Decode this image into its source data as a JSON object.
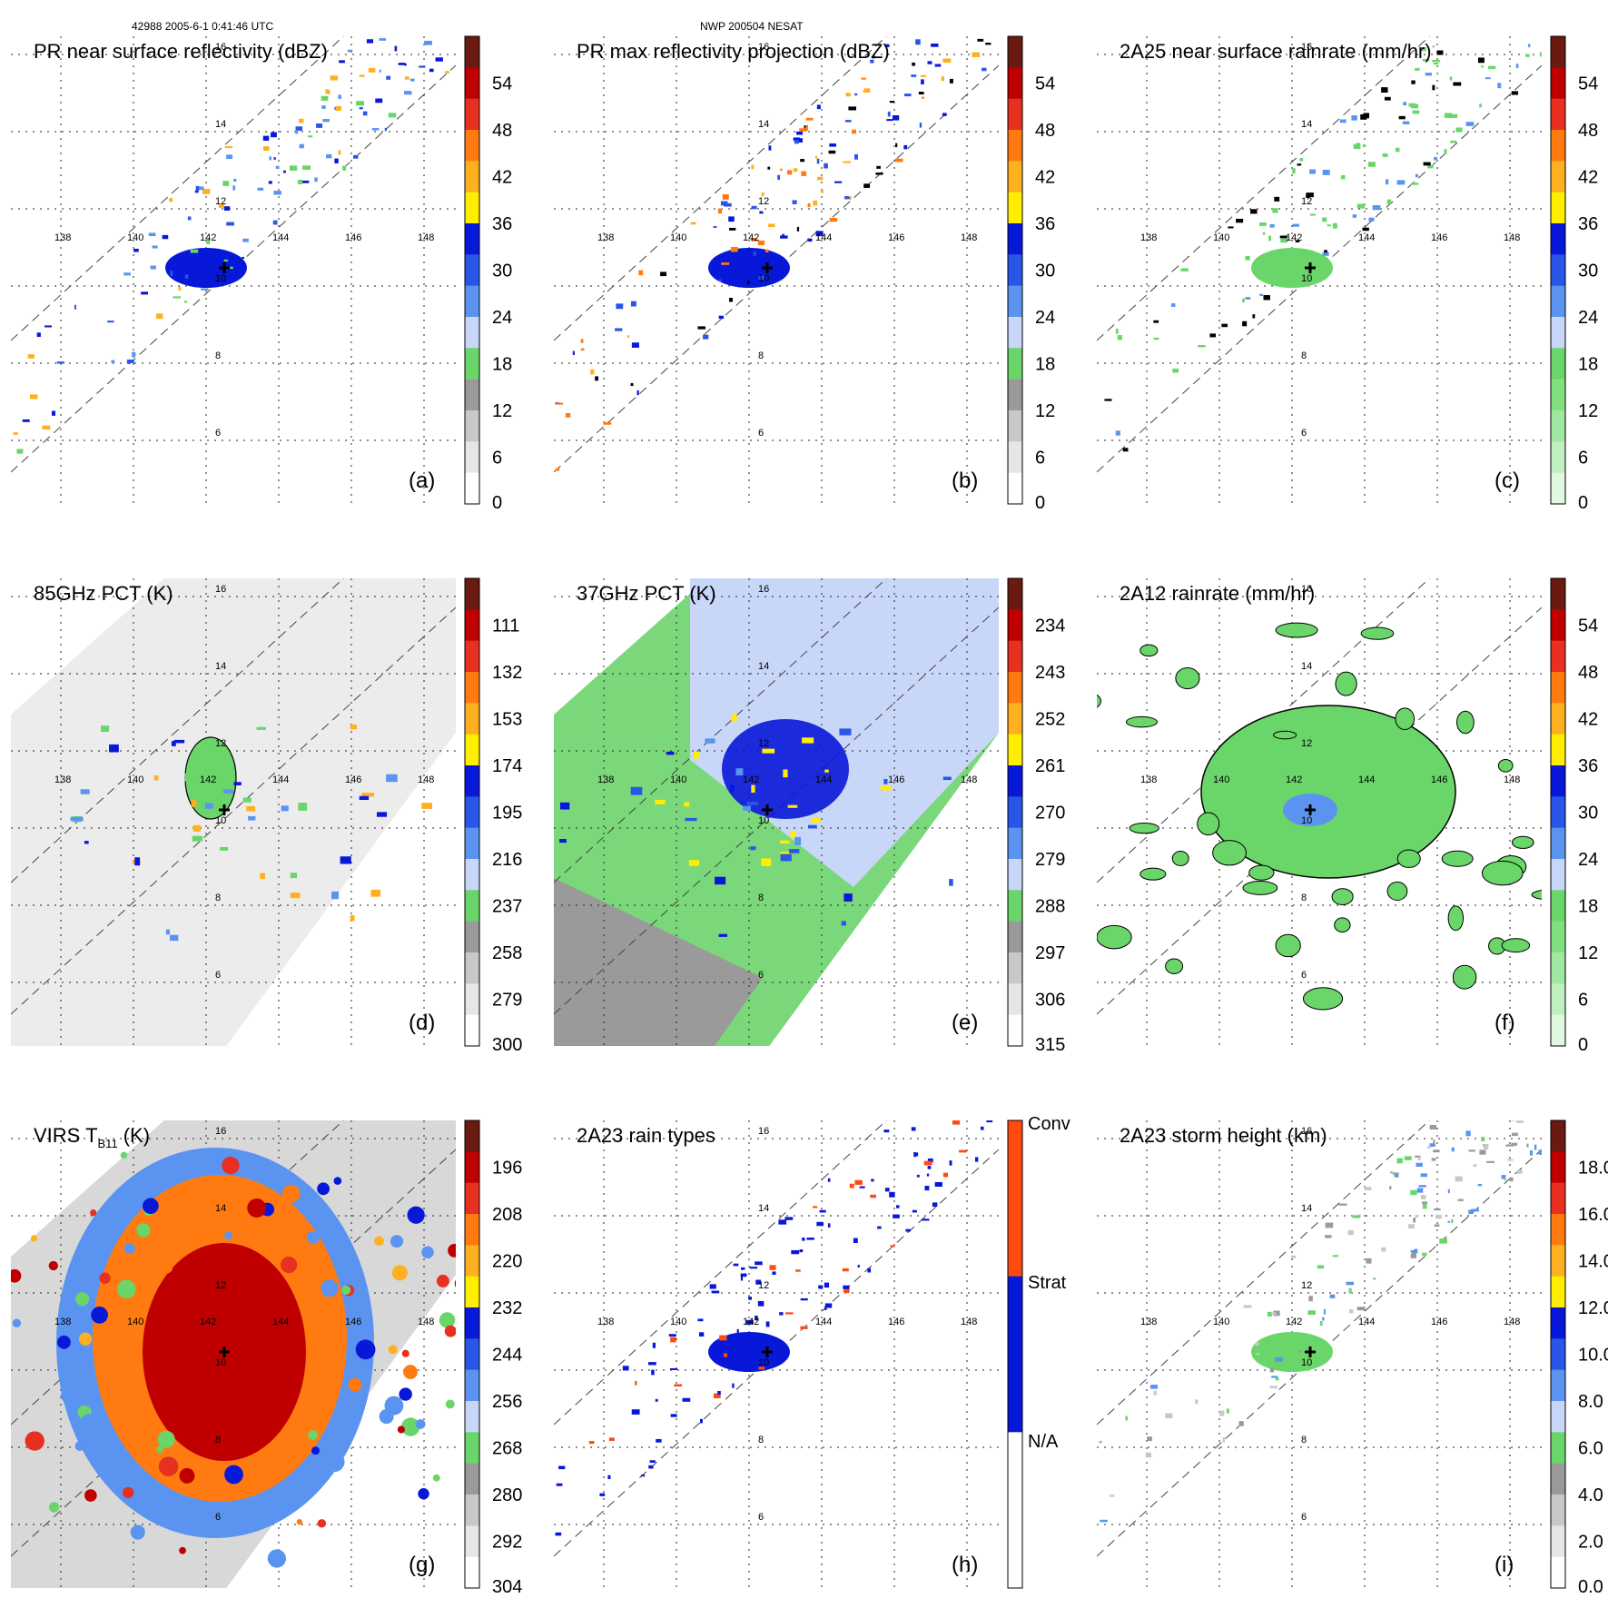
{
  "header": {
    "left": "42988 2005-6-1 0:41:46 UTC",
    "center": "NWP 200504 NESAT"
  },
  "colors": {
    "grid": "#222222",
    "swath_line": "#444444",
    "contour": "#000000"
  },
  "chart_data": [
    {
      "type": "heatmap",
      "id": "a",
      "title": "PR near surface reflectivity (dBZ)",
      "panel_label": "(a)",
      "plot": "pr_swath",
      "colorbar": {
        "ticks": [
          "54",
          "48",
          "42",
          "36",
          "30",
          "24",
          "18",
          "12",
          "6",
          "0"
        ],
        "colors": [
          "#6a1a10",
          "#c00000",
          "#e83020",
          "#ff7a10",
          "#ffb020",
          "#ffee00",
          "#0818d8",
          "#2a56e8",
          "#5a94f0",
          "#c8d6f8",
          "#6ad66a",
          "#9a9a9a",
          "#c8c8c8",
          "#e6e6e6",
          "#ffffff"
        ]
      },
      "palette": [
        "#0818d8",
        "#2a56e8",
        "#5a94f0",
        "#6ad66a",
        "#ffb020"
      ],
      "lon_ticks": [
        "138",
        "140",
        "142",
        "144",
        "146",
        "148"
      ],
      "lat_ticks": [
        "16",
        "14",
        "12",
        "10",
        "8",
        "6"
      ]
    },
    {
      "type": "heatmap",
      "id": "b",
      "title": "PR max reflectivity projection (dBZ)",
      "panel_label": "(b)",
      "plot": "pr_swath",
      "colorbar": {
        "ticks": [
          "54",
          "48",
          "42",
          "36",
          "30",
          "24",
          "18",
          "12",
          "6",
          "0"
        ],
        "colors": [
          "#6a1a10",
          "#c00000",
          "#e83020",
          "#ff7a10",
          "#ffb020",
          "#ffee00",
          "#0818d8",
          "#2a56e8",
          "#5a94f0",
          "#c8d6f8",
          "#6ad66a",
          "#9a9a9a",
          "#c8c8c8",
          "#e6e6e6",
          "#ffffff"
        ]
      },
      "palette": [
        "#0818d8",
        "#2a56e8",
        "#ffb020",
        "#ff7a10",
        "#000000"
      ],
      "lon_ticks": [
        "138",
        "140",
        "142",
        "144",
        "146",
        "148"
      ],
      "lat_ticks": [
        "16",
        "14",
        "12",
        "10",
        "8",
        "6"
      ]
    },
    {
      "type": "heatmap",
      "id": "c",
      "title": "2A25 near surface rainrate (mm/hr)",
      "panel_label": "(c)",
      "plot": "pr_swath",
      "colorbar": {
        "ticks": [
          "54",
          "48",
          "42",
          "36",
          "30",
          "24",
          "18",
          "12",
          "6",
          "0"
        ],
        "colors": [
          "#6a1a10",
          "#c00000",
          "#e83020",
          "#ff7a10",
          "#ffb020",
          "#ffee00",
          "#0818d8",
          "#2a56e8",
          "#5a94f0",
          "#c8d6f8",
          "#6ad66a",
          "#80e080",
          "#a0e8a0",
          "#c0f0c0",
          "#e0f8e0"
        ]
      },
      "palette": [
        "#6ad66a",
        "#6ad66a",
        "#5a94f0",
        "#000000"
      ],
      "lon_ticks": [
        "138",
        "140",
        "142",
        "144",
        "146",
        "148"
      ],
      "lat_ticks": [
        "16",
        "14",
        "12",
        "10",
        "8",
        "6"
      ]
    },
    {
      "type": "heatmap",
      "id": "d",
      "title": "85GHz PCT (K)",
      "panel_label": "(d)",
      "plot": "tmi_swath",
      "colorbar": {
        "ticks": [
          "111",
          "132",
          "153",
          "174",
          "195",
          "216",
          "237",
          "258",
          "279",
          "300"
        ],
        "colors": [
          "#6a1a10",
          "#c00000",
          "#e83020",
          "#ff7a10",
          "#ffb020",
          "#ffee00",
          "#0818d8",
          "#2a56e8",
          "#5a94f0",
          "#c8d6f8",
          "#6ad66a",
          "#9a9a9a",
          "#c8c8c8",
          "#e6e6e6",
          "#ffffff"
        ]
      },
      "palette": [
        "#6ad66a",
        "#5a94f0",
        "#0818d8",
        "#ffb020"
      ],
      "lon_ticks": [
        "138",
        "140",
        "142",
        "144",
        "146",
        "148"
      ],
      "lat_ticks": [
        "16",
        "14",
        "12",
        "10",
        "8",
        "6"
      ]
    },
    {
      "type": "heatmap",
      "id": "e",
      "title": "37GHz PCT (K)",
      "panel_label": "(e)",
      "plot": "tmi_swath",
      "colorbar": {
        "ticks": [
          "234",
          "243",
          "252",
          "261",
          "270",
          "279",
          "288",
          "297",
          "306",
          "315"
        ],
        "colors": [
          "#6a1a10",
          "#c00000",
          "#e83020",
          "#ff7a10",
          "#ffb020",
          "#ffee00",
          "#0818d8",
          "#2a56e8",
          "#5a94f0",
          "#c8d6f8",
          "#6ad66a",
          "#9a9a9a",
          "#c8c8c8",
          "#e6e6e6",
          "#ffffff"
        ]
      },
      "palette": [
        "#0818d8",
        "#2a56e8",
        "#5a94f0",
        "#ffee00"
      ],
      "lon_ticks": [
        "138",
        "140",
        "142",
        "144",
        "146",
        "148"
      ],
      "lat_ticks": [
        "16",
        "14",
        "12",
        "10",
        "8",
        "6"
      ]
    },
    {
      "type": "heatmap",
      "id": "f",
      "title": "2A12 rainrate (mm/hr)",
      "panel_label": "(f)",
      "plot": "tmi_rain",
      "colorbar": {
        "ticks": [
          "54",
          "48",
          "42",
          "36",
          "30",
          "24",
          "18",
          "12",
          "6",
          "0"
        ],
        "colors": [
          "#6a1a10",
          "#c00000",
          "#e83020",
          "#ff7a10",
          "#ffb020",
          "#ffee00",
          "#0818d8",
          "#2a56e8",
          "#5a94f0",
          "#c8d6f8",
          "#6ad66a",
          "#80e080",
          "#a0e8a0",
          "#c0f0c0",
          "#e0f8e0"
        ]
      },
      "palette": [
        "#6ad66a",
        "#6ad66a",
        "#5a94f0"
      ],
      "lon_ticks": [
        "138",
        "140",
        "142",
        "144",
        "146",
        "148"
      ],
      "lat_ticks": [
        "16",
        "14",
        "12",
        "10",
        "8",
        "6"
      ]
    },
    {
      "type": "heatmap",
      "id": "g",
      "title": "VIRS T",
      "title_sub": "B11",
      "title_unit": "(K)",
      "panel_label": "(g)",
      "plot": "virs",
      "colorbar": {
        "ticks": [
          "196",
          "208",
          "220",
          "232",
          "244",
          "256",
          "268",
          "280",
          "292",
          "304"
        ],
        "colors": [
          "#6a1a10",
          "#c00000",
          "#e83020",
          "#ff7a10",
          "#ffb020",
          "#ffee00",
          "#0818d8",
          "#2a56e8",
          "#5a94f0",
          "#c8d6f8",
          "#6ad66a",
          "#9a9a9a",
          "#c8c8c8",
          "#e6e6e6",
          "#ffffff"
        ]
      },
      "palette": [
        "#c00000",
        "#e83020",
        "#ff7a10",
        "#ffb020",
        "#0818d8",
        "#5a94f0",
        "#6ad66a"
      ],
      "lon_ticks": [
        "138",
        "140",
        "142",
        "144",
        "146",
        "148"
      ],
      "lat_ticks": [
        "16",
        "14",
        "12",
        "10",
        "8",
        "6"
      ]
    },
    {
      "type": "heatmap",
      "id": "h",
      "title": "2A23 rain types",
      "panel_label": "(h)",
      "plot": "pr_swath",
      "colorbar": {
        "categorical": true,
        "labels": [
          "Conv",
          "Strat",
          "N/A"
        ],
        "colors": [
          "#ff4a10",
          "#0818d8",
          "#ffffff"
        ]
      },
      "palette": [
        "#0818d8",
        "#0818d8",
        "#0818d8",
        "#ff4a10"
      ],
      "lon_ticks": [
        "138",
        "140",
        "142",
        "144",
        "146",
        "148"
      ],
      "lat_ticks": [
        "16",
        "14",
        "12",
        "10",
        "8",
        "6"
      ]
    },
    {
      "type": "heatmap",
      "id": "i",
      "title": "2A23 storm height (km)",
      "panel_label": "(i)",
      "plot": "pr_swath",
      "colorbar": {
        "ticks": [
          "18.0",
          "16.0",
          "14.0",
          "12.0",
          "10.0",
          "8.0",
          "6.0",
          "4.0",
          "2.0",
          "0.0"
        ],
        "colors": [
          "#6a1a10",
          "#c00000",
          "#e83020",
          "#ff7a10",
          "#ffb020",
          "#ffee00",
          "#0818d8",
          "#2a56e8",
          "#5a94f0",
          "#c8d6f8",
          "#6ad66a",
          "#9a9a9a",
          "#c8c8c8",
          "#e6e6e6",
          "#ffffff"
        ]
      },
      "palette": [
        "#6ad66a",
        "#9a9a9a",
        "#c8c8c8",
        "#5a94f0"
      ],
      "lon_ticks": [
        "138",
        "140",
        "142",
        "144",
        "146",
        "148"
      ],
      "lat_ticks": [
        "16",
        "14",
        "12",
        "10",
        "8",
        "6"
      ]
    }
  ]
}
